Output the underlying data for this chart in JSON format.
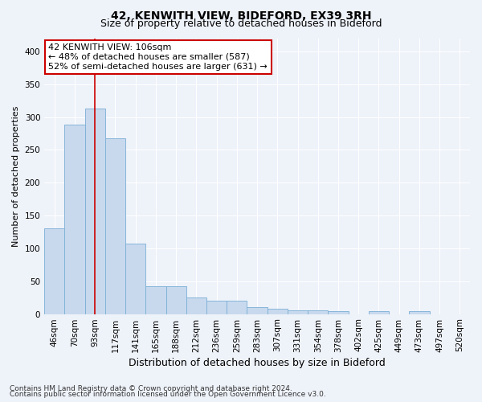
{
  "title": "42, KENWITH VIEW, BIDEFORD, EX39 3RH",
  "subtitle": "Size of property relative to detached houses in Bideford",
  "xlabel": "Distribution of detached houses by size in Bideford",
  "ylabel": "Number of detached properties",
  "footer1": "Contains HM Land Registry data © Crown copyright and database right 2024.",
  "footer2": "Contains public sector information licensed under the Open Government Licence v3.0.",
  "categories": [
    "46sqm",
    "70sqm",
    "93sqm",
    "117sqm",
    "141sqm",
    "165sqm",
    "188sqm",
    "212sqm",
    "236sqm",
    "259sqm",
    "283sqm",
    "307sqm",
    "331sqm",
    "354sqm",
    "378sqm",
    "402sqm",
    "425sqm",
    "449sqm",
    "473sqm",
    "497sqm",
    "520sqm"
  ],
  "values": [
    130,
    288,
    313,
    268,
    107,
    42,
    42,
    25,
    20,
    20,
    10,
    8,
    6,
    5,
    4,
    0,
    4,
    0,
    4,
    0,
    0
  ],
  "bar_color": "#c8d9ee",
  "bar_edge_color": "#7aafd4",
  "vline_x_index": 2,
  "vline_color": "#cc0000",
  "annotation_line1": "42 KENWITH VIEW: 106sqm",
  "annotation_line2": "← 48% of detached houses are smaller (587)",
  "annotation_line3": "52% of semi-detached houses are larger (631) →",
  "annotation_box_color": "white",
  "annotation_box_edge": "#cc0000",
  "ylim": [
    0,
    420
  ],
  "yticks": [
    0,
    50,
    100,
    150,
    200,
    250,
    300,
    350,
    400
  ],
  "background_color": "#eef2f9",
  "grid_color": "white",
  "title_fontsize": 10,
  "subtitle_fontsize": 9,
  "xlabel_fontsize": 9,
  "ylabel_fontsize": 8,
  "tick_fontsize": 7.5,
  "annotation_fontsize": 8,
  "footer_fontsize": 6.5
}
